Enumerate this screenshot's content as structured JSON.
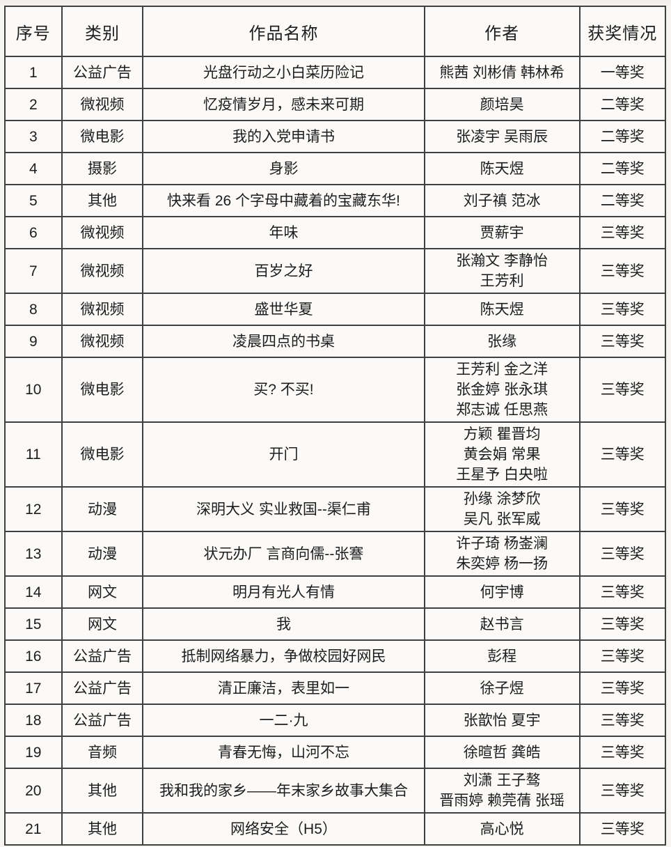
{
  "colors": {
    "border": "#404040",
    "text": "#1c1c1c",
    "page_background": "#f6f5f2",
    "cell_background": "#fbfaf8"
  },
  "table": {
    "columns": [
      {
        "key": "index",
        "label": "序号"
      },
      {
        "key": "category",
        "label": "类别"
      },
      {
        "key": "title",
        "label": "作品名称"
      },
      {
        "key": "authors",
        "label": "作者"
      },
      {
        "key": "award",
        "label": "获奖情况"
      }
    ],
    "rows": [
      {
        "index": "1",
        "category": "公益广告",
        "title": "光盘行动之小白菜历险记",
        "authors": [
          "熊茜 刘彬倩 韩林希"
        ],
        "award": "一等奖"
      },
      {
        "index": "2",
        "category": "微视频",
        "title": "忆疫情岁月，感未来可期",
        "authors": [
          "颜培昊"
        ],
        "award": "二等奖"
      },
      {
        "index": "3",
        "category": "微电影",
        "title": "我的入党申请书",
        "authors": [
          "张凌宇 吴雨辰"
        ],
        "award": "二等奖"
      },
      {
        "index": "4",
        "category": "摄影",
        "title": "身影",
        "authors": [
          "陈天煜"
        ],
        "award": "二等奖"
      },
      {
        "index": "5",
        "category": "其他",
        "title": "快来看 26 个字母中藏着的宝藏东华!",
        "authors": [
          "刘子禛 范冰"
        ],
        "award": "二等奖"
      },
      {
        "index": "6",
        "category": "微视频",
        "title": "年味",
        "authors": [
          "贾薪宇"
        ],
        "award": "三等奖"
      },
      {
        "index": "7",
        "category": "微视频",
        "title": "百岁之好",
        "authors": [
          "张瀚文 李静怡",
          "王芳利"
        ],
        "award": "三等奖"
      },
      {
        "index": "8",
        "category": "微视频",
        "title": "盛世华夏",
        "authors": [
          "陈天煜"
        ],
        "award": "三等奖"
      },
      {
        "index": "9",
        "category": "微视频",
        "title": "凌晨四点的书桌",
        "authors": [
          "张缘"
        ],
        "award": "三等奖"
      },
      {
        "index": "10",
        "category": "微电影",
        "title": "买? 不买!",
        "authors": [
          "王芳利 金之洋",
          "张金婷 张永琪",
          "郑志诚 任思燕"
        ],
        "award": "三等奖"
      },
      {
        "index": "11",
        "category": "微电影",
        "title": "开门",
        "authors": [
          "方颖 瞿晋均",
          "黄会娟 常果",
          "王星予 白央啦"
        ],
        "award": "三等奖"
      },
      {
        "index": "12",
        "category": "动漫",
        "title": "深明大义 实业救国--渠仁甫",
        "authors": [
          "孙缘 涂梦欣",
          "吴凡 张军威"
        ],
        "award": "三等奖"
      },
      {
        "index": "13",
        "category": "动漫",
        "title": "状元办厂 言商向儒--张謇",
        "authors": [
          "许子琦 杨崟澜",
          "朱奕婷 杨一扬"
        ],
        "award": "三等奖"
      },
      {
        "index": "14",
        "category": "网文",
        "title": "明月有光人有情",
        "authors": [
          "何宇博"
        ],
        "award": "三等奖"
      },
      {
        "index": "15",
        "category": "网文",
        "title": "我",
        "authors": [
          "赵书言"
        ],
        "award": "三等奖"
      },
      {
        "index": "16",
        "category": "公益广告",
        "title": "抵制网络暴力，争做校园好网民",
        "authors": [
          "彭程"
        ],
        "award": "三等奖"
      },
      {
        "index": "17",
        "category": "公益广告",
        "title": "清正廉洁，表里如一",
        "authors": [
          "徐子煜"
        ],
        "award": "三等奖"
      },
      {
        "index": "18",
        "category": "公益广告",
        "title": "一二·九",
        "authors": [
          "张歆怡 夏宇"
        ],
        "award": "三等奖"
      },
      {
        "index": "19",
        "category": "音频",
        "title": "青春无悔，山河不忘",
        "authors": [
          "徐暄哲 龚皓"
        ],
        "award": "三等奖"
      },
      {
        "index": "20",
        "category": "其他",
        "title": "我和我的家乡——年末家乡故事大集合",
        "authors": [
          "刘潇 王子骜",
          "晋雨婷 赖莞蒨 张瑶"
        ],
        "award": "三等奖"
      },
      {
        "index": "21",
        "category": "其他",
        "title": "网络安全（H5）",
        "authors": [
          "高心悦"
        ],
        "award": "三等奖"
      }
    ]
  }
}
